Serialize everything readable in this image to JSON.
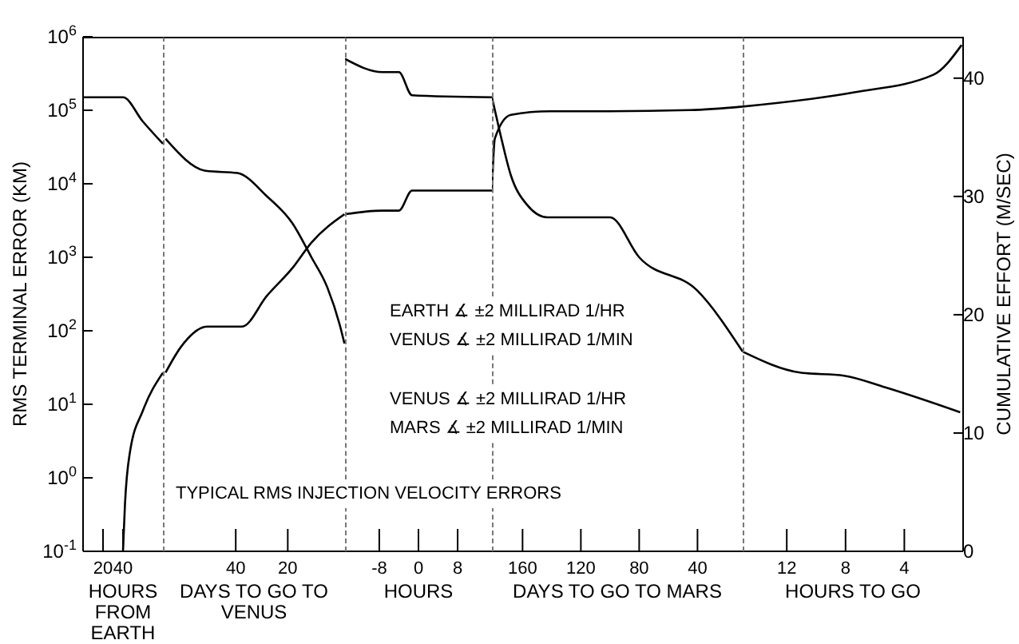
{
  "chart_data": [
    {
      "type": "line",
      "xlabel": "HOURS FROM EARTH",
      "ylabel": "RMS TERMINAL ERROR (KM)",
      "xlim": [
        0,
        80
      ],
      "xticks": [
        20,
        40
      ],
      "ylim": [
        0.1,
        1000000
      ],
      "log": "y",
      "yticks": [
        {
          "value": 0.1,
          "label": "10$^{-1}$"
        },
        {
          "value": 1,
          "label": "10$^{0}$"
        },
        {
          "value": 10,
          "label": "10$^{1}$"
        },
        {
          "value": 100,
          "label": "10$^{2}$"
        },
        {
          "value": 1000,
          "label": "10$^{3}$"
        },
        {
          "value": 10000,
          "label": "10$^{4}$"
        },
        {
          "value": 100000,
          "label": "10$^{5}$"
        },
        {
          "value": 1000000,
          "label": "10$^{6}$"
        }
      ],
      "y2lim": [
        0,
        43.5
      ],
      "tick_labels": [
        "x",
        "y"
      ],
      "grid": false,
      "legend": false,
      "annotations": [
        "TYPICAL RMS INJECTION VELOCITY ERRORS"
      ],
      "series": [
        {
          "color": "#000000",
          "x": [
            0,
            40,
            60,
            80
          ],
          "values": [
            150000,
            150000,
            70000,
            35000
          ]
        },
        {
          "color": "#000000",
          "axis": "y2",
          "x": [
            40,
            42,
            47,
            60,
            80
          ],
          "values": [
            0,
            4,
            8.4,
            11.9,
            15.1
          ]
        }
      ]
    },
    {
      "type": "line",
      "xlabel": "DAYS TO GO TO VENUS",
      "xlim": [
        68,
        -2
      ],
      "xticks": [
        40,
        20
      ],
      "ylim": [
        0.1,
        1000000
      ],
      "log": "y",
      "y2lim": [
        0,
        43.5
      ],
      "tick_labels": [
        "x"
      ],
      "grid": false,
      "legend": false,
      "annotations": [
        "EARTH ∡ ±2 MILLIRAD 1/HR",
        "VENUS ∡ ±2 MILLIRAD 1/MIN"
      ],
      "series": [
        {
          "color": "#000000",
          "x": [
            67,
            51.5,
            39.4,
            27.9,
            18.2,
            10.9,
            4.8,
            0,
            -1.8
          ],
          "values": [
            41000,
            15000,
            14000,
            6700,
            2900,
            1000,
            390,
            120,
            67
          ]
        },
        {
          "color": "#000000",
          "axis": "y2",
          "x": [
            67,
            61,
            50.9,
            37.6,
            28,
            18,
            10.9,
            -1.8
          ],
          "values": [
            15.1,
            17.3,
            19,
            19,
            21.6,
            24,
            26.1,
            28.5
          ]
        }
      ]
    },
    {
      "type": "line",
      "xlabel": "HOURS",
      "xlim": [
        -15,
        15
      ],
      "xticks": [
        -8,
        0,
        8
      ],
      "ylim": [
        0.1,
        1000000
      ],
      "log": "y",
      "y2lim": [
        0,
        43.5
      ],
      "tick_labels": [
        "x"
      ],
      "grid": false,
      "legend": false,
      "series": [
        {
          "color": "#000000",
          "x": [
            -15,
            -7.3,
            -4,
            -1.3,
            15
          ],
          "values": [
            500000,
            330000,
            330000,
            160000,
            150000
          ]
        },
        {
          "color": "#000000",
          "axis": "y2",
          "x": [
            -15,
            -7.3,
            -4,
            -1.3,
            15
          ],
          "values": [
            28.5,
            28.8,
            28.8,
            30.5,
            30.5
          ]
        }
      ]
    },
    {
      "type": "line",
      "xlabel": "DAYS TO GO TO MARS",
      "xlim": [
        181,
        9
      ],
      "xticks": [
        160,
        120,
        80,
        40
      ],
      "ylim": [
        0.1,
        1000000
      ],
      "log": "y",
      "y2lim": [
        0,
        43.5
      ],
      "tick_labels": [
        "x"
      ],
      "grid": false,
      "legend": false,
      "annotations": [
        "VENUS ∡ ±2 MILLIRAD 1/HR",
        "MARS ∡ ±2 MILLIRAD 1/MIN"
      ],
      "series": [
        {
          "color": "#000000",
          "x": [
            181,
            175.5,
            168,
            157,
            143,
            100,
            80,
            40,
            9
          ],
          "values": [
            150000,
            50000,
            13000,
            5200,
            3500,
            3500,
            1000,
            350,
            52
          ]
        },
        {
          "color": "#000000",
          "axis": "y2",
          "x": [
            181,
            179,
            168,
            141,
            102,
            45,
            9
          ],
          "values": [
            30.5,
            34.9,
            36.9,
            37.2,
            37.2,
            37.3,
            37.6
          ]
        }
      ]
    },
    {
      "type": "line",
      "xlabel": "HOURS TO GO",
      "xlim": [
        15,
        0
      ],
      "xticks": [
        12,
        8,
        4
      ],
      "ylim": [
        0.1,
        1000000
      ],
      "log": "y",
      "y2label": "CUMULATIVE EFFORT (M/SEC)",
      "y2lim": [
        0,
        43.5
      ],
      "y2ticks": [
        0,
        10,
        20,
        30,
        40
      ],
      "tick_labels": [
        "x",
        "y2"
      ],
      "grid": false,
      "legend": false,
      "series": [
        {
          "color": "#000000",
          "x": [
            15,
            11.1,
            8.1,
            5.3,
            0.2
          ],
          "values": [
            52,
            27,
            24.5,
            17,
            7.8
          ]
        },
        {
          "color": "#000000",
          "axis": "y2",
          "x": [
            15,
            7.4,
            2,
            0.1
          ],
          "values": [
            37.6,
            38.8,
            40.3,
            42.8
          ]
        }
      ]
    }
  ]
}
